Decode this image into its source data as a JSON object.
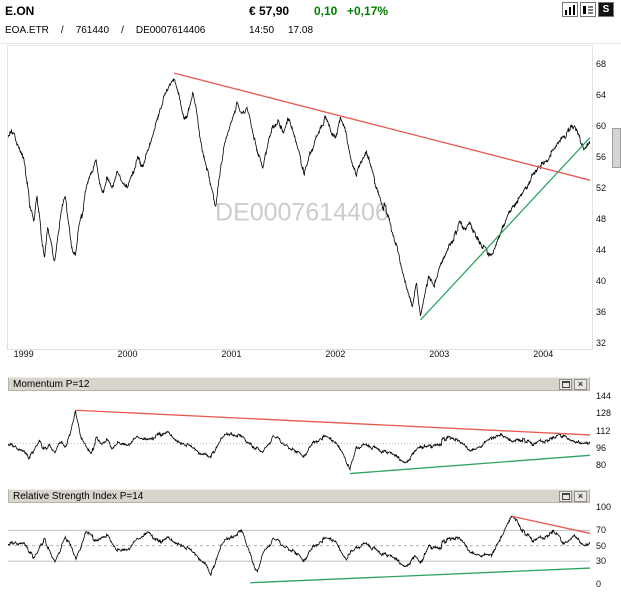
{
  "header": {
    "symbol": "E.ON",
    "price": "€ 57,90",
    "change_abs": "0,10",
    "change_pct": "+0,17%",
    "time": "14:50",
    "date": "17.08",
    "ticker": "EOA.ETR",
    "sep1": "/",
    "wkn": "761440",
    "sep2": "/",
    "isin": "DE0007614406",
    "toolbar": {
      "settings_label": "S"
    }
  },
  "colors": {
    "up_green": "#008000",
    "trend_red": "#e8584f",
    "trend_green": "#2fa263",
    "watermark": "#cccccc",
    "series_black": "#000000",
    "titlebar_bg": "#d8d5cd"
  },
  "chart_data": [
    {
      "type": "line",
      "name": "price",
      "title": "E.ON",
      "watermark": "DE0007614406",
      "last_price": 57.9,
      "xlim": [
        1998.85,
        2004.45
      ],
      "ylim": [
        31.5,
        70.3
      ],
      "yticks": [
        68,
        64,
        60,
        56,
        52,
        48,
        44,
        40,
        36,
        32
      ],
      "xticks": [
        1999,
        2000,
        2001,
        2002,
        2003,
        2004
      ],
      "line_color": "#000000",
      "noise": 0.8,
      "steps": 1500,
      "trendlines": [
        {
          "name": "resistance-trendline",
          "color": "#e8584f",
          "from": [
            2000.45,
            66.8
          ],
          "to": [
            2004.45,
            53.0
          ]
        },
        {
          "name": "support-trendline",
          "color": "#2fa263",
          "from": [
            2002.82,
            35.0
          ],
          "to": [
            2004.45,
            58.5
          ]
        }
      ],
      "anchors": [
        [
          1998.85,
          58.5
        ],
        [
          1998.9,
          59
        ],
        [
          1998.95,
          57.5
        ],
        [
          1999.0,
          56
        ],
        [
          1999.03,
          53.5
        ],
        [
          1999.06,
          50
        ],
        [
          1999.1,
          48
        ],
        [
          1999.13,
          51
        ],
        [
          1999.17,
          46
        ],
        [
          1999.2,
          43
        ],
        [
          1999.23,
          47
        ],
        [
          1999.27,
          45
        ],
        [
          1999.3,
          42.5
        ],
        [
          1999.33,
          46
        ],
        [
          1999.37,
          49
        ],
        [
          1999.4,
          51
        ],
        [
          1999.43,
          48
        ],
        [
          1999.47,
          44
        ],
        [
          1999.5,
          43
        ],
        [
          1999.53,
          46.5
        ],
        [
          1999.57,
          49
        ],
        [
          1999.6,
          52
        ],
        [
          1999.65,
          54
        ],
        [
          1999.7,
          55.5
        ],
        [
          1999.73,
          53
        ],
        [
          1999.77,
          51.5
        ],
        [
          1999.8,
          53.5
        ],
        [
          1999.85,
          52
        ],
        [
          1999.9,
          54
        ],
        [
          1999.95,
          53
        ],
        [
          2000.0,
          52
        ],
        [
          2000.05,
          54
        ],
        [
          2000.1,
          56
        ],
        [
          2000.15,
          55
        ],
        [
          2000.2,
          57.5
        ],
        [
          2000.25,
          59.5
        ],
        [
          2000.3,
          61.5
        ],
        [
          2000.35,
          63.5
        ],
        [
          2000.4,
          65
        ],
        [
          2000.45,
          66.5
        ],
        [
          2000.5,
          63.5
        ],
        [
          2000.55,
          60.5
        ],
        [
          2000.6,
          62.5
        ],
        [
          2000.63,
          64
        ],
        [
          2000.67,
          61
        ],
        [
          2000.7,
          58.5
        ],
        [
          2000.75,
          55.5
        ],
        [
          2000.8,
          52
        ],
        [
          2000.85,
          49.5
        ],
        [
          2000.9,
          55
        ],
        [
          2000.95,
          58.5
        ],
        [
          2001.0,
          60.5
        ],
        [
          2001.05,
          63
        ],
        [
          2001.1,
          61
        ],
        [
          2001.15,
          62.5
        ],
        [
          2001.2,
          60
        ],
        [
          2001.25,
          57
        ],
        [
          2001.3,
          54.5
        ],
        [
          2001.35,
          57.5
        ],
        [
          2001.4,
          60
        ],
        [
          2001.45,
          61
        ],
        [
          2001.5,
          59
        ],
        [
          2001.55,
          61
        ],
        [
          2001.6,
          59
        ],
        [
          2001.65,
          57
        ],
        [
          2001.7,
          53.5
        ],
        [
          2001.75,
          56
        ],
        [
          2001.8,
          58
        ],
        [
          2001.85,
          60
        ],
        [
          2001.9,
          61
        ],
        [
          2001.95,
          59.5
        ],
        [
          2002.0,
          58
        ],
        [
          2002.05,
          60.5
        ],
        [
          2002.1,
          59
        ],
        [
          2002.15,
          56
        ],
        [
          2002.2,
          53.5
        ],
        [
          2002.25,
          55
        ],
        [
          2002.3,
          56.5
        ],
        [
          2002.35,
          54.5
        ],
        [
          2002.4,
          52
        ],
        [
          2002.45,
          50
        ],
        [
          2002.5,
          48.5
        ],
        [
          2002.55,
          46
        ],
        [
          2002.6,
          44
        ],
        [
          2002.65,
          41
        ],
        [
          2002.7,
          39
        ],
        [
          2002.74,
          37
        ],
        [
          2002.78,
          40
        ],
        [
          2002.82,
          35.3
        ],
        [
          2002.86,
          38
        ],
        [
          2002.9,
          40.5
        ],
        [
          2002.95,
          39
        ],
        [
          2003.0,
          41.5
        ],
        [
          2003.05,
          43
        ],
        [
          2003.1,
          44.5
        ],
        [
          2003.15,
          46
        ],
        [
          2003.2,
          47.5
        ],
        [
          2003.25,
          46.5
        ],
        [
          2003.3,
          47.3
        ],
        [
          2003.35,
          46
        ],
        [
          2003.4,
          44.5
        ],
        [
          2003.45,
          43.8
        ],
        [
          2003.5,
          43.2
        ],
        [
          2003.55,
          45
        ],
        [
          2003.6,
          46.5
        ],
        [
          2003.65,
          48
        ],
        [
          2003.7,
          49.5
        ],
        [
          2003.75,
          50.5
        ],
        [
          2003.8,
          51.5
        ],
        [
          2003.85,
          52.5
        ],
        [
          2003.9,
          53.5
        ],
        [
          2003.95,
          54.5
        ],
        [
          2004.0,
          55
        ],
        [
          2004.05,
          56
        ],
        [
          2004.1,
          57
        ],
        [
          2004.15,
          58
        ],
        [
          2004.2,
          58.5
        ],
        [
          2004.25,
          59.5
        ],
        [
          2004.3,
          60
        ],
        [
          2004.33,
          59
        ],
        [
          2004.36,
          58
        ],
        [
          2004.4,
          57
        ],
        [
          2004.43,
          57.5
        ],
        [
          2004.45,
          57.9
        ]
      ]
    },
    {
      "type": "line",
      "name": "momentum",
      "title": "Momentum P=12",
      "xlim": [
        1998.85,
        2004.45
      ],
      "ylim": [
        66,
        148
      ],
      "yticks": [
        144,
        128,
        112,
        96,
        80
      ],
      "line_color": "#000000",
      "noise": 3.8,
      "steps": 1300,
      "reference_lines": [
        {
          "y": 100,
          "style": "dotted"
        }
      ],
      "trendlines": [
        {
          "name": "momentum-resistance-trendline",
          "color": "#e8584f",
          "from": [
            1999.5,
            131
          ],
          "to": [
            2004.45,
            108
          ]
        },
        {
          "name": "momentum-support-trendline",
          "color": "#2fa263",
          "from": [
            2002.14,
            72
          ],
          "to": [
            2004.45,
            89
          ]
        }
      ],
      "anchors": [
        [
          1998.85,
          98
        ],
        [
          1999.0,
          94
        ],
        [
          1999.05,
          88
        ],
        [
          1999.1,
          95
        ],
        [
          1999.15,
          103
        ],
        [
          1999.2,
          94
        ],
        [
          1999.25,
          99
        ],
        [
          1999.3,
          92
        ],
        [
          1999.35,
          104
        ],
        [
          1999.4,
          97
        ],
        [
          1999.45,
          107
        ],
        [
          1999.5,
          131
        ],
        [
          1999.55,
          108
        ],
        [
          1999.6,
          96
        ],
        [
          1999.65,
          88
        ],
        [
          1999.7,
          106
        ],
        [
          1999.75,
          99
        ],
        [
          1999.8,
          104
        ],
        [
          1999.85,
          96
        ],
        [
          1999.9,
          102
        ],
        [
          2000.0,
          98
        ],
        [
          2000.1,
          107
        ],
        [
          2000.2,
          103
        ],
        [
          2000.3,
          109
        ],
        [
          2000.4,
          112
        ],
        [
          2000.5,
          101
        ],
        [
          2000.6,
          97
        ],
        [
          2000.7,
          92
        ],
        [
          2000.8,
          87
        ],
        [
          2000.9,
          103
        ],
        [
          2001.0,
          111
        ],
        [
          2001.1,
          105
        ],
        [
          2001.2,
          97
        ],
        [
          2001.3,
          92
        ],
        [
          2001.4,
          106
        ],
        [
          2001.5,
          100
        ],
        [
          2001.6,
          96
        ],
        [
          2001.7,
          87
        ],
        [
          2001.8,
          103
        ],
        [
          2001.9,
          107
        ],
        [
          2002.0,
          101
        ],
        [
          2002.07,
          93
        ],
        [
          2002.14,
          75
        ],
        [
          2002.2,
          95
        ],
        [
          2002.3,
          101
        ],
        [
          2002.4,
          94
        ],
        [
          2002.5,
          90
        ],
        [
          2002.6,
          86
        ],
        [
          2002.7,
          83
        ],
        [
          2002.8,
          95
        ],
        [
          2002.9,
          98
        ],
        [
          2003.0,
          100
        ],
        [
          2003.1,
          105
        ],
        [
          2003.2,
          102
        ],
        [
          2003.3,
          95
        ],
        [
          2003.4,
          98
        ],
        [
          2003.5,
          104
        ],
        [
          2003.6,
          107
        ],
        [
          2003.7,
          101
        ],
        [
          2003.8,
          104
        ],
        [
          2003.9,
          99
        ],
        [
          2004.0,
          102
        ],
        [
          2004.1,
          105
        ],
        [
          2004.2,
          107
        ],
        [
          2004.3,
          102
        ],
        [
          2004.4,
          99
        ],
        [
          2004.45,
          101
        ]
      ]
    },
    {
      "type": "line",
      "name": "rsi",
      "title": "Relative Strength Index P=14",
      "xlim": [
        1998.85,
        2004.45
      ],
      "ylim": [
        -10,
        104
      ],
      "yticks": [
        100,
        70,
        50,
        30,
        0
      ],
      "line_color": "#000000",
      "noise": 5.5,
      "steps": 1300,
      "clamp": [
        2,
        97
      ],
      "reference_lines": [
        {
          "y": 70,
          "style": "solid"
        },
        {
          "y": 50,
          "style": "dashed"
        },
        {
          "y": 30,
          "style": "solid"
        }
      ],
      "trendlines": [
        {
          "name": "rsi-resistance-trendline",
          "color": "#e8584f",
          "from": [
            2003.7,
            88
          ],
          "to": [
            2004.45,
            66
          ]
        },
        {
          "name": "rsi-support-trendline",
          "color": "#2fa263",
          "from": [
            2001.18,
            2
          ],
          "to": [
            2004.45,
            21
          ]
        }
      ],
      "anchors": [
        [
          1998.85,
          50
        ],
        [
          1999.0,
          55
        ],
        [
          1999.1,
          36
        ],
        [
          1999.2,
          58
        ],
        [
          1999.3,
          30
        ],
        [
          1999.4,
          62
        ],
        [
          1999.5,
          34
        ],
        [
          1999.6,
          66
        ],
        [
          1999.7,
          56
        ],
        [
          1999.8,
          64
        ],
        [
          1999.9,
          46
        ],
        [
          2000.0,
          44
        ],
        [
          2000.1,
          60
        ],
        [
          2000.2,
          67
        ],
        [
          2000.3,
          56
        ],
        [
          2000.4,
          63
        ],
        [
          2000.5,
          52
        ],
        [
          2000.6,
          44
        ],
        [
          2000.7,
          34
        ],
        [
          2000.77,
          22
        ],
        [
          2000.8,
          11
        ],
        [
          2000.85,
          30
        ],
        [
          2000.9,
          48
        ],
        [
          2001.0,
          64
        ],
        [
          2001.1,
          67
        ],
        [
          2001.15,
          50
        ],
        [
          2001.2,
          30
        ],
        [
          2001.25,
          14
        ],
        [
          2001.3,
          40
        ],
        [
          2001.4,
          58
        ],
        [
          2001.5,
          50
        ],
        [
          2001.6,
          46
        ],
        [
          2001.7,
          29
        ],
        [
          2001.8,
          52
        ],
        [
          2001.9,
          60
        ],
        [
          2002.0,
          56
        ],
        [
          2002.1,
          34
        ],
        [
          2002.2,
          46
        ],
        [
          2002.3,
          56
        ],
        [
          2002.4,
          42
        ],
        [
          2002.5,
          35
        ],
        [
          2002.6,
          29
        ],
        [
          2002.7,
          24
        ],
        [
          2002.77,
          34
        ],
        [
          2002.82,
          26
        ],
        [
          2002.9,
          50
        ],
        [
          2003.0,
          48
        ],
        [
          2003.1,
          58
        ],
        [
          2003.2,
          60
        ],
        [
          2003.3,
          44
        ],
        [
          2003.4,
          38
        ],
        [
          2003.5,
          36
        ],
        [
          2003.6,
          60
        ],
        [
          2003.65,
          75
        ],
        [
          2003.7,
          88
        ],
        [
          2003.75,
          80
        ],
        [
          2003.8,
          70
        ],
        [
          2003.9,
          56
        ],
        [
          2004.0,
          60
        ],
        [
          2004.1,
          68
        ],
        [
          2004.15,
          60
        ],
        [
          2004.2,
          52
        ],
        [
          2004.3,
          64
        ],
        [
          2004.35,
          55
        ],
        [
          2004.4,
          48
        ],
        [
          2004.45,
          54
        ]
      ]
    }
  ]
}
